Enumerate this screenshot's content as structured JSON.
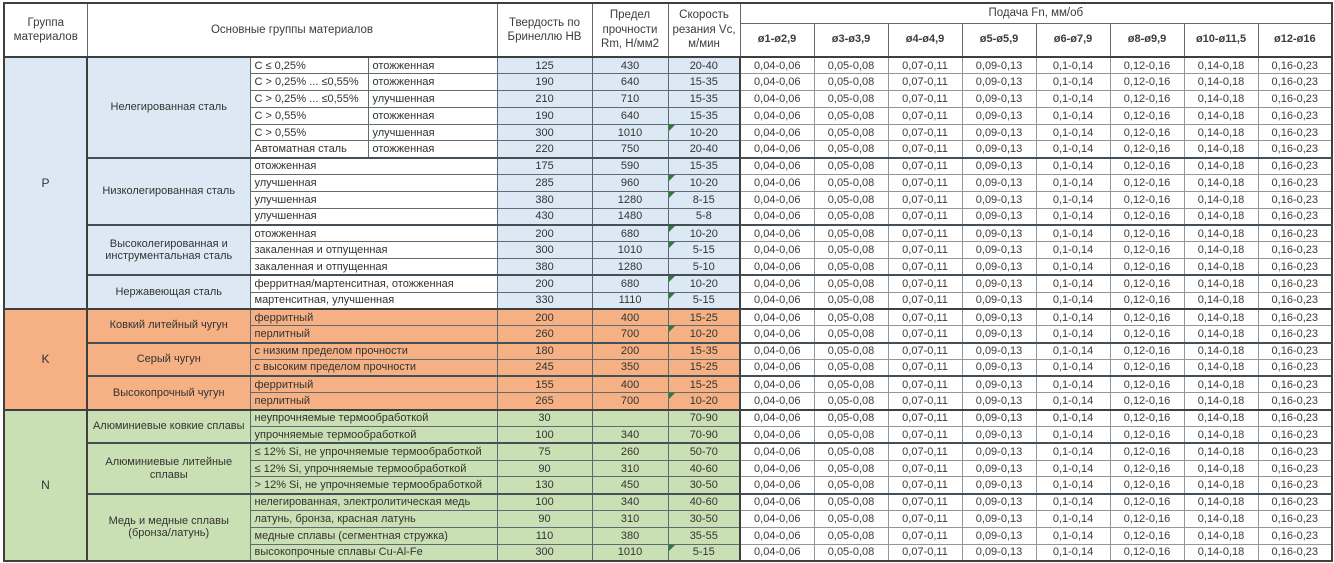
{
  "header": {
    "col_group": "Группа материалов",
    "col_materials": "Основные группы материалов",
    "col_hardness": "Твердость по Бринеллю HB",
    "col_strength": "Предел прочности Rm, Н/мм2",
    "col_speed": "Скорость резания Vc, м/мин",
    "col_feed": "Подача Fn, мм/об",
    "diameters": [
      "ø1-ø2,9",
      "ø3-ø3,9",
      "ø4-ø4,9",
      "ø5-ø5,9",
      "ø6-ø7,9",
      "ø8-ø9,9",
      "ø10-ø11,5",
      "ø12-ø16"
    ]
  },
  "feed_values": [
    "0,04-0,06",
    "0,05-0,08",
    "0,07-0,11",
    "0,09-0,13",
    "0,1-0,14",
    "0,12-0,16",
    "0,14-0,18",
    "0,16-0,23"
  ],
  "colors": {
    "group_p": "#dce9f5",
    "group_k": "#f5b183",
    "group_n": "#c9e0b4",
    "note_marker": "#2e7d32"
  },
  "groups": [
    {
      "code": "P",
      "color": "#dce9f5",
      "desc_filled": false,
      "subgroups": [
        {
          "name": "Нелегированная сталь",
          "rows": [
            {
              "c1": "C ≤ 0,25%",
              "c2": "отожженная",
              "hb": "125",
              "rm": "430",
              "vc": "20-40",
              "note": false
            },
            {
              "c1": "C > 0,25% ... ≤0,55%",
              "c2": "отожженная",
              "hb": "190",
              "rm": "640",
              "vc": "15-35",
              "note": false
            },
            {
              "c1": "C > 0,25% ... ≤0,55%",
              "c2": "улучшенная",
              "hb": "210",
              "rm": "710",
              "vc": "15-35",
              "note": false
            },
            {
              "c1": "C > 0,55%",
              "c2": "отожженная",
              "hb": "190",
              "rm": "640",
              "vc": "15-35",
              "note": false
            },
            {
              "c1": "C > 0,55%",
              "c2": "улучшенная",
              "hb": "300",
              "rm": "1010",
              "vc": "10-20",
              "note": true
            },
            {
              "c1": "Автоматная сталь",
              "c2": "отожженная",
              "hb": "220",
              "rm": "750",
              "vc": "20-40",
              "note": false
            }
          ]
        },
        {
          "name": "Низколегированная сталь",
          "rows": [
            {
              "c1": "отожженная",
              "c2": null,
              "hb": "175",
              "rm": "590",
              "vc": "15-35",
              "note": false
            },
            {
              "c1": "улучшенная",
              "c2": null,
              "hb": "285",
              "rm": "960",
              "vc": "10-20",
              "note": true
            },
            {
              "c1": "улучшенная",
              "c2": null,
              "hb": "380",
              "rm": "1280",
              "vc": "8-15",
              "note": true
            },
            {
              "c1": "улучшенная",
              "c2": null,
              "hb": "430",
              "rm": "1480",
              "vc": "5-8",
              "note": false
            }
          ]
        },
        {
          "name": "Высоколегированная и инструментальная сталь",
          "rows": [
            {
              "c1": "отожженная",
              "c2": null,
              "hb": "200",
              "rm": "680",
              "vc": "10-20",
              "note": true
            },
            {
              "c1": "закаленная и отпущенная",
              "c2": null,
              "hb": "300",
              "rm": "1010",
              "vc": "5-15",
              "note": true
            },
            {
              "c1": "закаленная и отпущенная",
              "c2": null,
              "hb": "380",
              "rm": "1280",
              "vc": "5-10",
              "note": false
            }
          ]
        },
        {
          "name": "Нержавеющая сталь",
          "rows": [
            {
              "c1": "ферритная/мартенситная, отожженная",
              "c2": null,
              "hb": "200",
              "rm": "680",
              "vc": "10-20",
              "note": true
            },
            {
              "c1": "мартенситная, улучшенная",
              "c2": null,
              "hb": "330",
              "rm": "1110",
              "vc": "5-15",
              "note": true
            }
          ]
        }
      ]
    },
    {
      "code": "K",
      "color": "#f5b183",
      "desc_filled": true,
      "subgroups": [
        {
          "name": "Ковкий литейный чугун",
          "rows": [
            {
              "c1": "ферритный",
              "c2": null,
              "hb": "200",
              "rm": "400",
              "vc": "15-25",
              "note": false
            },
            {
              "c1": "перлитный",
              "c2": null,
              "hb": "260",
              "rm": "700",
              "vc": "10-20",
              "note": true
            }
          ]
        },
        {
          "name": "Серый чугун",
          "rows": [
            {
              "c1": "с низким пределом прочности",
              "c2": null,
              "hb": "180",
              "rm": "200",
              "vc": "15-35",
              "note": false
            },
            {
              "c1": "с высоким пределом прочности",
              "c2": null,
              "hb": "245",
              "rm": "350",
              "vc": "15-25",
              "note": false
            }
          ]
        },
        {
          "name": "Высокопрочный чугун",
          "rows": [
            {
              "c1": "ферритный",
              "c2": null,
              "hb": "155",
              "rm": "400",
              "vc": "15-25",
              "note": false
            },
            {
              "c1": "перлитный",
              "c2": null,
              "hb": "265",
              "rm": "700",
              "vc": "10-20",
              "note": true
            }
          ]
        }
      ]
    },
    {
      "code": "N",
      "color": "#c9e0b4",
      "desc_filled": true,
      "subgroups": [
        {
          "name": "Алюминиевые ковкие сплавы",
          "rows": [
            {
              "c1": "неупрочняемые термообработкой",
              "c2": null,
              "hb": "30",
              "rm": "",
              "vc": "70-90",
              "note": false
            },
            {
              "c1": "упрочняемые термообработкой",
              "c2": null,
              "hb": "100",
              "rm": "340",
              "vc": "70-90",
              "note": false
            }
          ]
        },
        {
          "name": "Алюминиевые литейные сплавы",
          "rows": [
            {
              "c1": "≤ 12% Si, не упрочняемые термообработкой",
              "c2": null,
              "hb": "75",
              "rm": "260",
              "vc": "50-70",
              "note": false
            },
            {
              "c1": "≤ 12% Si, упрочняемые термообработкой",
              "c2": null,
              "hb": "90",
              "rm": "310",
              "vc": "40-60",
              "note": false
            },
            {
              "c1": "> 12% Si, не упрочняемые термообработкой",
              "c2": null,
              "hb": "130",
              "rm": "450",
              "vc": "30-50",
              "note": false
            }
          ]
        },
        {
          "name": "Медь и медные сплавы (бронза/латунь)",
          "rows": [
            {
              "c1": "нелегированная, электролитическая медь",
              "c2": null,
              "hb": "100",
              "rm": "340",
              "vc": "40-60",
              "note": false
            },
            {
              "c1": "латунь, бронза, красная латунь",
              "c2": null,
              "hb": "90",
              "rm": "310",
              "vc": "30-50",
              "note": false
            },
            {
              "c1": "медные сплавы (сегментная стружка)",
              "c2": null,
              "hb": "110",
              "rm": "380",
              "vc": "35-55",
              "note": false
            },
            {
              "c1": "высокопрочные сплавы Cu-Al-Fe",
              "c2": null,
              "hb": "300",
              "rm": "1010",
              "vc": "5-15",
              "note": true
            }
          ]
        }
      ]
    }
  ]
}
